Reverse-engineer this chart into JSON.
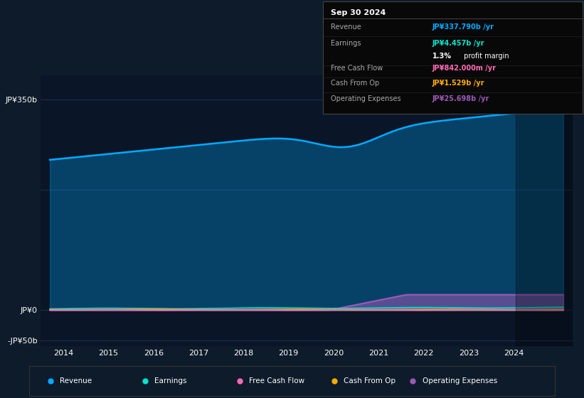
{
  "bg_color": "#0d1b2a",
  "plot_bg_color": "#0a1628",
  "ylabel_350": "JP¥350b",
  "ylabel_0": "JP¥0",
  "ylabel_neg50": "-JP¥50b",
  "ylim": [
    -60,
    390
  ],
  "xlim": [
    2013.5,
    2025.3
  ],
  "xticks": [
    2014,
    2015,
    2016,
    2017,
    2018,
    2019,
    2020,
    2021,
    2022,
    2023,
    2024
  ],
  "grid_color": "#1e3050",
  "revenue_color": "#00aaff",
  "earnings_color": "#00e5cc",
  "fcf_color": "#ff69b4",
  "cfo_color": "#ffaa00",
  "opex_color": "#9b59b6",
  "legend": [
    {
      "label": "Revenue",
      "color": "#00aaff"
    },
    {
      "label": "Earnings",
      "color": "#00e5cc"
    },
    {
      "label": "Free Cash Flow",
      "color": "#ff69b4"
    },
    {
      "label": "Cash From Op",
      "color": "#ffaa00"
    },
    {
      "label": "Operating Expenses",
      "color": "#9b59b6"
    }
  ]
}
